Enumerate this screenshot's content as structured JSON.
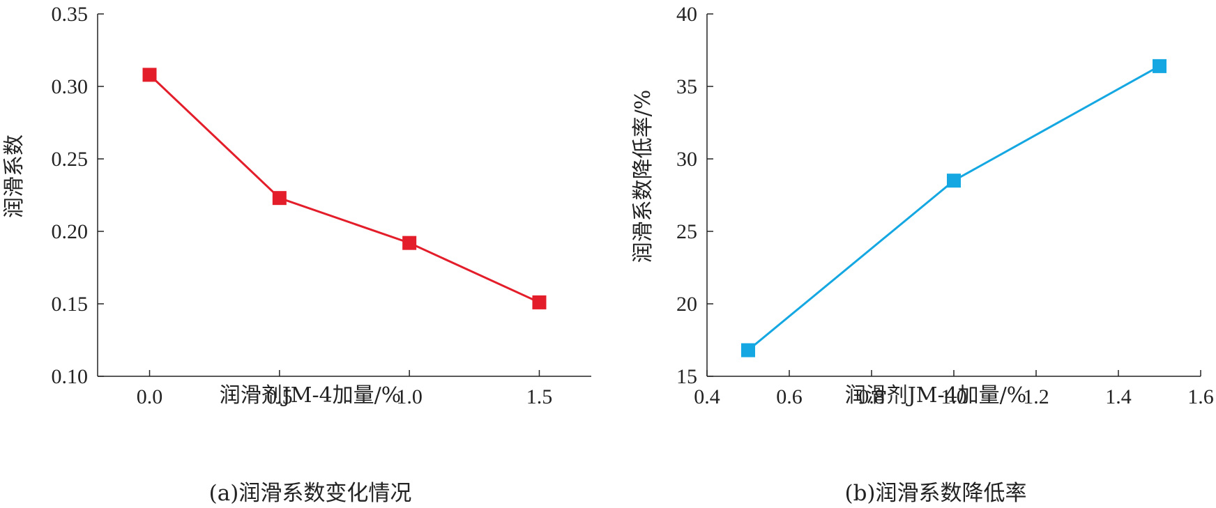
{
  "chart_data": [
    {
      "type": "line",
      "caption": "(a)润滑系数变化情况",
      "xlabel": "润滑剂JM-4加量/%",
      "ylabel": "润滑系数",
      "xlim": [
        -0.2,
        1.7
      ],
      "ylim": [
        0.1,
        0.35
      ],
      "x_ticks": [
        "0.0",
        "0.5",
        "1.0",
        "1.5"
      ],
      "y_ticks": [
        "0.10",
        "0.15",
        "0.20",
        "0.25",
        "0.30",
        "0.35"
      ],
      "series": [
        {
          "x": [
            0.0,
            0.5,
            1.0,
            1.5
          ],
          "values": [
            0.308,
            0.223,
            0.192,
            0.151
          ],
          "color": "#e31e2a",
          "marker": "square"
        }
      ]
    },
    {
      "type": "line",
      "caption": "(b)润滑系数降低率",
      "xlabel": "润滑剂JM-4加量/%",
      "ylabel": "润滑系数降低率/%",
      "xlim": [
        0.4,
        1.6
      ],
      "ylim": [
        15,
        40
      ],
      "x_ticks": [
        "0.4",
        "0.6",
        "0.8",
        "1.0",
        "1.2",
        "1.4",
        "1.6"
      ],
      "y_ticks": [
        "15",
        "20",
        "25",
        "30",
        "35",
        "40"
      ],
      "series": [
        {
          "x": [
            0.5,
            1.0,
            1.5
          ],
          "values": [
            16.8,
            28.5,
            36.4
          ],
          "color": "#14a7e1",
          "marker": "square"
        }
      ]
    }
  ]
}
